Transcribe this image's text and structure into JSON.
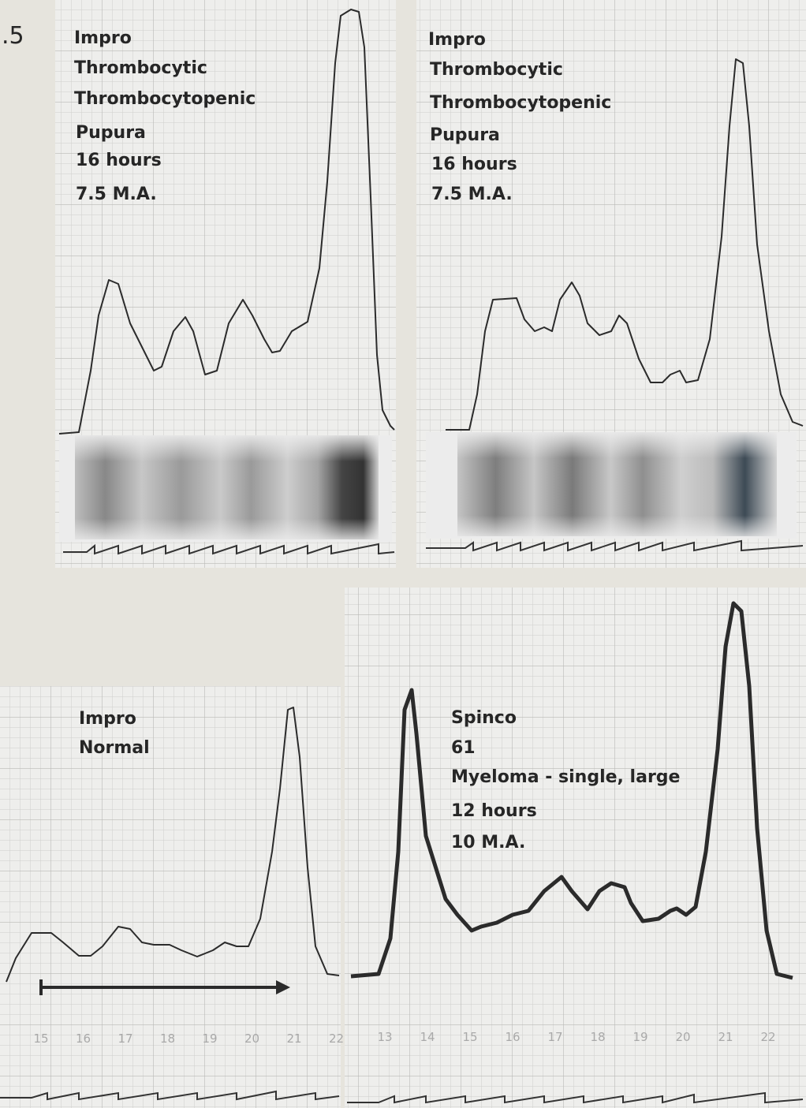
{
  "figure_label": ".5",
  "panels": [
    {
      "lines": [
        "Impro",
        "Thrombocytic",
        "Thrombocytopenic",
        "Pupura",
        "16 hours",
        "7.5 M.A."
      ]
    },
    {
      "lines": [
        "Impro",
        "Thrombocytic",
        "Thrombocytopenic",
        "Pupura",
        "16 hours",
        "7.5 M.A."
      ]
    },
    {
      "lines": [
        "Impro",
        "Normal"
      ],
      "scale": [
        "15",
        "16",
        "17",
        "18",
        "19",
        "20",
        "21",
        "22"
      ]
    },
    {
      "lines": [
        "Spinco",
        "61",
        "Myeloma - single, large",
        "12 hours",
        "10 M.A."
      ],
      "scale": [
        "13",
        "14",
        "15",
        "16",
        "17",
        "18",
        "19",
        "20",
        "21",
        "22"
      ]
    }
  ]
}
